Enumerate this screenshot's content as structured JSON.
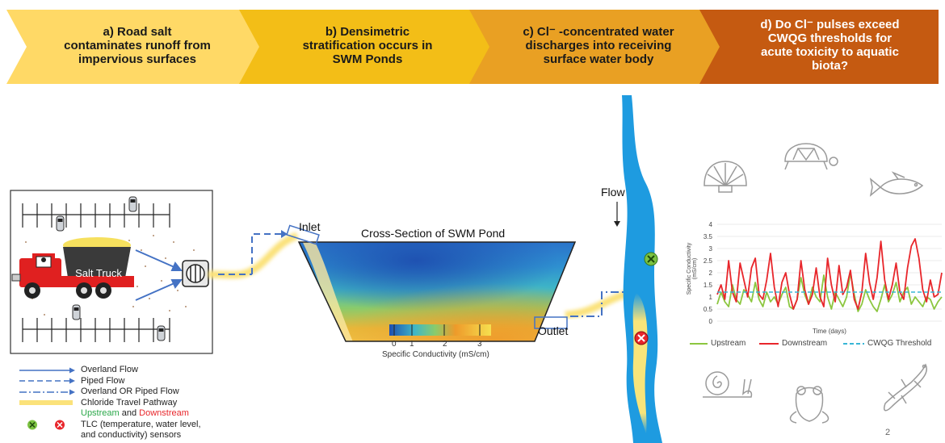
{
  "banner": {
    "steps": [
      {
        "label_a": "a) Road salt",
        "label_b": "contaminates runoff from",
        "label_c": "impervious surfaces",
        "color": "#FFD966"
      },
      {
        "label_a": "b) Densimetric",
        "label_b": "stratification occurs in",
        "label_c": "SWM Ponds",
        "color": "#F3BE17"
      },
      {
        "label_a": "c) Cl⁻ -concentrated water",
        "label_b": "discharges into receiving",
        "label_c": "surface water body",
        "color": "#E9A023"
      },
      {
        "label_a": "d) Do Cl⁻ pulses exceed",
        "label_b": "CWQG thresholds for",
        "label_c": "acute toxicity to aquatic",
        "label_d": "biota?",
        "color": "#C55A11"
      }
    ]
  },
  "parking": {
    "truck_label": "Salt Truck"
  },
  "pond": {
    "title": "Cross-Section of SWM Pond",
    "inlet_label": "Inlet",
    "outlet_label": "Outlet",
    "colorbar_ticks": [
      "0",
      "1",
      "2",
      "3"
    ],
    "colorbar_title": "Specific Conductivity (mS/cm)"
  },
  "river": {
    "flow_label": "Flow"
  },
  "legend": {
    "overland": "Overland Flow",
    "piped": "Piped Flow",
    "overland_or_piped": "Overland OR Piped Flow",
    "chloride": "Chloride Travel Pathway",
    "upstream": "Upstream",
    "and": " and ",
    "downstream": "Downstream",
    "tlc_1": "TLC (temperature, water level,",
    "tlc_2": "and conductivity) sensors"
  },
  "colors": {
    "upstream": "#8CC63F",
    "downstream": "#E8262B",
    "threshold": "#38B6D6",
    "arrow": "#4472C4",
    "river": "#1E9BE0"
  },
  "icons": [
    "shell-icon",
    "turtle-icon",
    "fish-icon",
    "snail-icon",
    "frog-icon",
    "lizard-icon"
  ],
  "page_number": "2",
  "chart_data": {
    "type": "line",
    "title": "",
    "xlabel": "Time (days)",
    "ylabel": "Specific Conductivity (mS/cm)",
    "ylim": [
      0,
      4
    ],
    "yticks": [
      "0",
      "0.5",
      "1",
      "1.5",
      "2",
      "2.5",
      "3",
      "3.5",
      "4"
    ],
    "x": [
      0,
      1,
      2,
      3,
      4,
      5,
      6,
      7,
      8,
      9,
      10,
      11,
      12,
      13,
      14,
      15,
      16,
      17,
      18,
      19,
      20,
      21,
      22,
      23,
      24,
      25,
      26,
      27,
      28,
      29,
      30,
      31,
      32,
      33,
      34,
      35,
      36,
      37,
      38,
      39,
      40,
      41,
      42,
      43,
      44,
      45,
      46,
      47,
      48,
      49,
      50,
      51,
      52,
      53,
      54,
      55,
      56,
      57,
      58,
      59
    ],
    "series": [
      {
        "name": "Upstream",
        "color": "#8CC63F",
        "values": [
          0.7,
          1.2,
          0.8,
          0.6,
          1.5,
          0.9,
          0.7,
          1.3,
          1.1,
          0.8,
          1.6,
          0.9,
          0.6,
          1.2,
          0.8,
          1.0,
          0.7,
          1.1,
          1.4,
          0.6,
          0.5,
          0.9,
          1.8,
          1.1,
          0.7,
          1.4,
          1.0,
          0.8,
          1.9,
          1.0,
          0.5,
          1.2,
          0.9,
          0.6,
          1.0,
          2.0,
          1.1,
          0.4,
          0.7,
          1.3,
          0.9,
          0.6,
          0.4,
          0.9,
          1.5,
          0.8,
          1.1,
          1.6,
          0.8,
          1.2,
          1.4,
          0.7,
          1.0,
          0.8,
          0.6,
          1.0,
          0.9,
          0.5,
          0.8,
          1.0
        ]
      },
      {
        "name": "Downstream",
        "color": "#E8262B",
        "values": [
          1.1,
          1.5,
          0.9,
          2.5,
          1.2,
          0.8,
          2.4,
          1.7,
          1.0,
          2.2,
          2.6,
          1.1,
          0.9,
          1.7,
          2.8,
          1.4,
          0.6,
          1.6,
          2.0,
          1.1,
          0.5,
          0.9,
          2.5,
          1.3,
          0.7,
          1.1,
          2.2,
          1.0,
          0.6,
          2.6,
          1.5,
          0.8,
          2.3,
          1.1,
          1.4,
          2.1,
          0.9,
          0.5,
          1.2,
          2.8,
          1.6,
          0.9,
          1.8,
          3.3,
          1.7,
          0.9,
          1.5,
          2.4,
          1.2,
          0.9,
          2.2,
          3.1,
          3.4,
          2.6,
          1.3,
          0.8,
          1.7,
          1.0,
          1.1,
          2.0
        ]
      },
      {
        "name": "CWQG Threshold",
        "color": "#38B6D6",
        "dashed": true,
        "values": [
          1.2,
          1.2,
          1.2,
          1.2,
          1.2,
          1.2,
          1.2,
          1.2,
          1.2,
          1.2,
          1.2,
          1.2,
          1.2,
          1.2,
          1.2,
          1.2,
          1.2,
          1.2,
          1.2,
          1.2,
          1.2,
          1.2,
          1.2,
          1.2,
          1.2,
          1.2,
          1.2,
          1.2,
          1.2,
          1.2,
          1.2,
          1.2,
          1.2,
          1.2,
          1.2,
          1.2,
          1.2,
          1.2,
          1.2,
          1.2,
          1.2,
          1.2,
          1.2,
          1.2,
          1.2,
          1.2,
          1.2,
          1.2,
          1.2,
          1.2,
          1.2,
          1.2,
          1.2,
          1.2,
          1.2,
          1.2,
          1.2,
          1.2,
          1.2,
          1.2
        ]
      }
    ],
    "legend_position": "bottom",
    "grid": true
  }
}
